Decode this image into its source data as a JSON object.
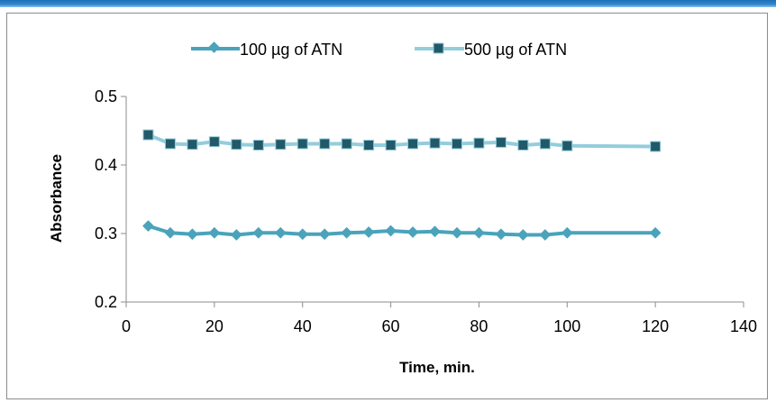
{
  "chart_data": {
    "type": "line",
    "title": "",
    "xlabel": "Time, min.",
    "ylabel": "Absorbance",
    "xlim": [
      0,
      140
    ],
    "ylim": [
      0.2,
      0.5
    ],
    "x_ticks": [
      "0",
      "20",
      "40",
      "60",
      "80",
      "100",
      "120",
      "140"
    ],
    "y_ticks": [
      "0.2",
      "0.3",
      "0.4",
      "0.5"
    ],
    "grid": false,
    "legend_position": "top",
    "series": [
      {
        "name": "100 µg of ATN",
        "marker": "diamond",
        "color": "#4aa3bb",
        "x": [
          5,
          10,
          15,
          20,
          25,
          30,
          35,
          40,
          45,
          50,
          55,
          60,
          65,
          70,
          75,
          80,
          85,
          90,
          95,
          100,
          120
        ],
        "y": [
          0.311,
          0.301,
          0.299,
          0.301,
          0.298,
          0.301,
          0.301,
          0.299,
          0.299,
          0.301,
          0.302,
          0.304,
          0.302,
          0.303,
          0.301,
          0.301,
          0.299,
          0.298,
          0.298,
          0.301,
          0.301
        ]
      },
      {
        "name": "500 µg of ATN",
        "marker": "square",
        "color": "#93cddd",
        "marker_color": "#215968",
        "x": [
          5,
          10,
          15,
          20,
          25,
          30,
          35,
          40,
          45,
          50,
          55,
          60,
          65,
          70,
          75,
          80,
          85,
          90,
          95,
          100,
          120
        ],
        "y": [
          0.444,
          0.431,
          0.43,
          0.434,
          0.43,
          0.429,
          0.43,
          0.431,
          0.431,
          0.431,
          0.429,
          0.429,
          0.431,
          0.432,
          0.431,
          0.432,
          0.433,
          0.429,
          0.431,
          0.428,
          0.427
        ]
      }
    ]
  }
}
